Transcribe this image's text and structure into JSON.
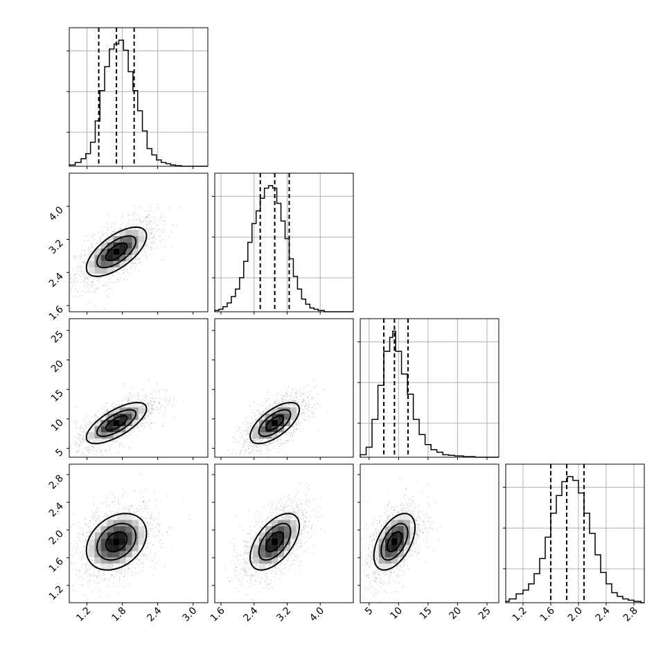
{
  "chart_data": {
    "type": "corner",
    "title": "",
    "parameters": [
      {
        "name": "",
        "range": [
          0.9,
          3.25
        ],
        "ticks": [
          1.2,
          1.8,
          2.4,
          3.0
        ],
        "tick_labels": [
          "1.2",
          "1.8",
          "2.4",
          "3.0"
        ],
        "quantiles": [
          1.4,
          1.7,
          2.0
        ],
        "hist": [
          [
            0.9,
            0.01
          ],
          [
            1.0,
            0.03
          ],
          [
            1.1,
            0.06
          ],
          [
            1.18,
            0.1
          ],
          [
            1.26,
            0.19
          ],
          [
            1.34,
            0.36
          ],
          [
            1.42,
            0.6
          ],
          [
            1.5,
            0.79
          ],
          [
            1.58,
            0.93
          ],
          [
            1.66,
            0.97
          ],
          [
            1.74,
            1.0
          ],
          [
            1.82,
            0.92
          ],
          [
            1.9,
            0.75
          ],
          [
            1.98,
            0.6
          ],
          [
            2.06,
            0.44
          ],
          [
            2.14,
            0.28
          ],
          [
            2.22,
            0.14
          ],
          [
            2.3,
            0.09
          ],
          [
            2.38,
            0.05
          ],
          [
            2.46,
            0.03
          ],
          [
            2.54,
            0.02
          ],
          [
            2.62,
            0.01
          ],
          [
            2.7,
            0.005
          ],
          [
            2.8,
            0.0
          ]
        ]
      },
      {
        "name": "",
        "range": [
          1.45,
          4.8
        ],
        "ticks": [
          1.6,
          2.4,
          3.2,
          4.0
        ],
        "tick_labels": [
          "1.6",
          "2.4",
          "3.2",
          "4.0"
        ],
        "quantiles": [
          2.55,
          2.9,
          3.25
        ],
        "hist": [
          [
            1.45,
            0.01
          ],
          [
            1.55,
            0.02
          ],
          [
            1.65,
            0.04
          ],
          [
            1.75,
            0.07
          ],
          [
            1.85,
            0.12
          ],
          [
            1.95,
            0.18
          ],
          [
            2.05,
            0.27
          ],
          [
            2.15,
            0.4
          ],
          [
            2.25,
            0.55
          ],
          [
            2.35,
            0.7
          ],
          [
            2.45,
            0.8
          ],
          [
            2.55,
            0.9
          ],
          [
            2.65,
            0.98
          ],
          [
            2.75,
            1.0
          ],
          [
            2.85,
            0.98
          ],
          [
            2.95,
            0.86
          ],
          [
            3.05,
            0.72
          ],
          [
            3.15,
            0.58
          ],
          [
            3.25,
            0.42
          ],
          [
            3.35,
            0.28
          ],
          [
            3.45,
            0.18
          ],
          [
            3.55,
            0.1
          ],
          [
            3.65,
            0.06
          ],
          [
            3.75,
            0.03
          ],
          [
            3.85,
            0.02
          ],
          [
            3.95,
            0.01
          ],
          [
            4.1,
            0.0
          ]
        ]
      },
      {
        "name": "",
        "range": [
          3.5,
          27.0
        ],
        "ticks": [
          5,
          10,
          15,
          20,
          25
        ],
        "tick_labels": [
          "5",
          "10",
          "15",
          "20",
          "25"
        ],
        "quantiles": [
          7.5,
          9.3,
          11.6
        ],
        "hist": [
          [
            3.5,
            0.02
          ],
          [
            4.5,
            0.08
          ],
          [
            5.5,
            0.3
          ],
          [
            6.5,
            0.57
          ],
          [
            7.5,
            0.84
          ],
          [
            8.5,
            0.95
          ],
          [
            9.0,
            1.0
          ],
          [
            9.5,
            0.84
          ],
          [
            10.5,
            0.66
          ],
          [
            11.5,
            0.5
          ],
          [
            12.5,
            0.3
          ],
          [
            13.5,
            0.18
          ],
          [
            14.5,
            0.1
          ],
          [
            15.5,
            0.06
          ],
          [
            16.5,
            0.04
          ],
          [
            17.5,
            0.02
          ],
          [
            18.5,
            0.015
          ],
          [
            19.5,
            0.01
          ],
          [
            21.0,
            0.005
          ],
          [
            23.0,
            0.0
          ]
        ]
      },
      {
        "name": "",
        "range": [
          0.95,
          2.95
        ],
        "ticks": [
          1.2,
          1.6,
          2.0,
          2.4,
          2.8
        ],
        "tick_labels": [
          "1.2",
          "1.6",
          "2.0",
          "2.4",
          "2.8"
        ],
        "quantiles": [
          1.6,
          1.83,
          2.08
        ],
        "hist": [
          [
            0.95,
            0.01
          ],
          [
            1.0,
            0.03
          ],
          [
            1.1,
            0.07
          ],
          [
            1.2,
            0.1
          ],
          [
            1.28,
            0.15
          ],
          [
            1.36,
            0.23
          ],
          [
            1.44,
            0.35
          ],
          [
            1.52,
            0.52
          ],
          [
            1.6,
            0.71
          ],
          [
            1.68,
            0.85
          ],
          [
            1.76,
            0.96
          ],
          [
            1.84,
            1.0
          ],
          [
            1.92,
            0.97
          ],
          [
            2.0,
            0.87
          ],
          [
            2.08,
            0.71
          ],
          [
            2.16,
            0.55
          ],
          [
            2.24,
            0.38
          ],
          [
            2.32,
            0.24
          ],
          [
            2.4,
            0.15
          ],
          [
            2.48,
            0.08
          ],
          [
            2.56,
            0.05
          ],
          [
            2.64,
            0.03
          ],
          [
            2.72,
            0.02
          ],
          [
            2.8,
            0.01
          ],
          [
            2.9,
            0.0
          ]
        ]
      }
    ],
    "pairs": [
      {
        "x": 0,
        "y": 1,
        "center": [
          1.7,
          2.9
        ],
        "corr": 0.65
      },
      {
        "x": 0,
        "y": 2,
        "center": [
          1.7,
          9.3
        ],
        "corr": 0.7
      },
      {
        "x": 1,
        "y": 2,
        "center": [
          2.9,
          9.3
        ],
        "corr": 0.65
      },
      {
        "x": 0,
        "y": 3,
        "center": [
          1.7,
          1.83
        ],
        "corr": 0.3
      },
      {
        "x": 1,
        "y": 3,
        "center": [
          2.9,
          1.83
        ],
        "corr": 0.55
      },
      {
        "x": 2,
        "y": 3,
        "center": [
          9.3,
          1.83
        ],
        "corr": 0.5
      }
    ],
    "grid": true,
    "scatter": true,
    "contour_levels": 3
  }
}
